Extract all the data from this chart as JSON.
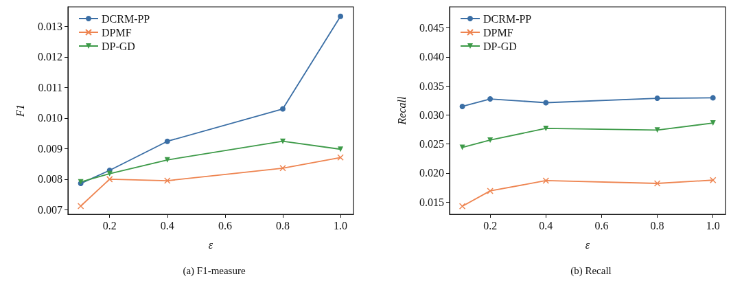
{
  "chart_data": [
    {
      "type": "line",
      "title": "(a) F1-measure",
      "xlabel": "ε",
      "ylabel": "F1",
      "x": [
        0.1,
        0.2,
        0.4,
        0.8,
        1.0
      ],
      "xlim": [
        0.0557,
        1.045
      ],
      "ylim": [
        0.00685,
        0.01364
      ],
      "xticks": [
        0.2,
        0.4,
        0.6,
        0.8,
        {
          "value": 1,
          "label": "1.0"
        }
      ],
      "yticks": [
        0.007,
        0.008,
        0.009,
        {
          "value": 0.01,
          "label": "0.010"
        },
        0.011,
        0.012,
        0.013
      ],
      "series": [
        {
          "name": "DCRM-PP",
          "color": "#3a6ea5",
          "marker": "circle",
          "values": [
            0.00786,
            0.00829,
            0.00924,
            0.0103,
            0.01333
          ]
        },
        {
          "name": "DPMF",
          "color": "#ee8450",
          "marker": "cross",
          "values": [
            0.00712,
            0.008,
            0.00795,
            0.00836,
            0.00871
          ]
        },
        {
          "name": "DP-GD",
          "color": "#3d9a48",
          "marker": "triangle",
          "values": [
            0.00791,
            0.00818,
            0.00863,
            0.00924,
            0.00898
          ]
        }
      ],
      "legend": "top left",
      "grid": false
    },
    {
      "type": "line",
      "title": "(b) Recall",
      "xlabel": "ε",
      "ylabel": "Recall",
      "x": [
        0.1,
        0.2,
        0.4,
        0.8,
        1.0
      ],
      "xlim": [
        0.0542,
        1.045
      ],
      "ylim": [
        0.0129,
        0.0486
      ],
      "xticks": [
        0.2,
        0.4,
        0.6,
        0.8,
        {
          "value": 1,
          "label": "1.0"
        }
      ],
      "yticks": [
        0.015,
        {
          "value": 0.02,
          "label": "0.020"
        },
        0.025,
        {
          "value": 0.03,
          "label": "0.030"
        },
        0.035,
        {
          "value": 0.04,
          "label": "0.040"
        },
        0.045
      ],
      "series": [
        {
          "name": "DCRM-PP",
          "color": "#3a6ea5",
          "marker": "circle",
          "values": [
            0.03146,
            0.03275,
            0.03211,
            0.03287,
            0.03295
          ]
        },
        {
          "name": "DPMF",
          "color": "#ee8450",
          "marker": "cross",
          "values": [
            0.01428,
            0.01693,
            0.0187,
            0.01822,
            0.01878
          ]
        },
        {
          "name": "DP-GD",
          "color": "#3d9a48",
          "marker": "triangle",
          "values": [
            0.02442,
            0.02567,
            0.02768,
            0.0274,
            0.02861
          ]
        }
      ],
      "legend": "top left",
      "grid": false
    }
  ]
}
